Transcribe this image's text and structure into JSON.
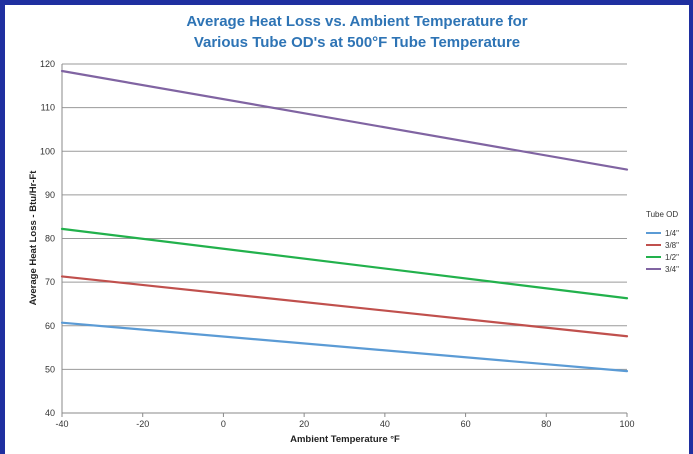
{
  "chart_data": {
    "type": "line",
    "title_line1": "Average Heat Loss vs. Ambient Temperature for",
    "title_line2": "Various Tube OD's at 500°F Tube Temperature",
    "xlabel": "Ambient Temperature °F",
    "ylabel": "Average Heat Loss - Btu/Hr-Ft",
    "xlim": [
      -40,
      100
    ],
    "ylim": [
      40,
      120
    ],
    "x_ticks": [
      -40,
      -20,
      0,
      20,
      40,
      60,
      80,
      100
    ],
    "y_ticks": [
      40,
      50,
      60,
      70,
      80,
      90,
      100,
      110,
      120
    ],
    "grid": "horizontal",
    "legend_title": "Tube OD",
    "legend_position": "right",
    "x": [
      -40,
      100
    ],
    "series": [
      {
        "name": "1/4\"",
        "color": "#5b9bd5",
        "values": [
          60.7,
          49.6
        ]
      },
      {
        "name": "3/8\"",
        "color": "#c0504d",
        "values": [
          71.3,
          57.6
        ]
      },
      {
        "name": "1/2\"",
        "color": "#22b14c",
        "values": [
          82.2,
          66.3
        ]
      },
      {
        "name": "3/4\"",
        "color": "#8064a2",
        "values": [
          118.4,
          95.8
        ]
      }
    ]
  }
}
